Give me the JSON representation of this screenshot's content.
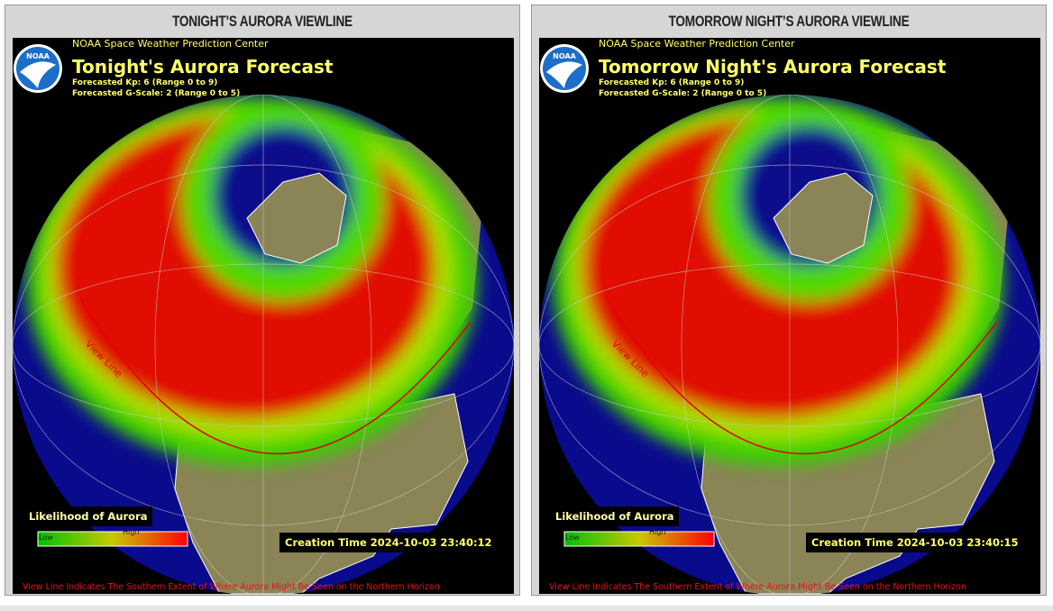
{
  "panels": [
    {
      "title": "TONIGHT’S AURORA VIEWLINE",
      "logo": "NOAA",
      "agency": "NOAA Space Weather Prediction Center",
      "heading": "Tonight's Aurora Forecast",
      "kp": "Forecasted Kp: 6 (Range 0 to 9)",
      "gscale": "Forecasted G-Scale: 2 (Range 0 to 5)",
      "legend_title": "Likelihood of Aurora",
      "legend_low": "Low",
      "legend_high": "High",
      "creation_time": "Creation Time 2024-10-03 23:40:12",
      "view_line": "View Line",
      "footer": "View Line Indicates The Southern Extent of Where Aurora Might Be Seen on the Northern Horizon"
    },
    {
      "title": "TOMORROW NIGHT’S AURORA VIEWLINE",
      "logo": "NOAA",
      "agency": "NOAA Space Weather Prediction Center",
      "heading": "Tomorrow Night's Aurora Forecast",
      "kp": "Forecasted Kp: 6 (Range 0 to 9)",
      "gscale": "Forecasted G-Scale: 2 (Range 0 to 5)",
      "legend_title": "Likelihood of Aurora",
      "legend_low": "Low",
      "legend_high": "High",
      "creation_time": "Creation Time 2024-10-03 23:40:15",
      "view_line": "View Line",
      "footer": "View Line Indicates The Southern Extent of Where Aurora Might Be Seen on the Northern Horizon"
    }
  ]
}
